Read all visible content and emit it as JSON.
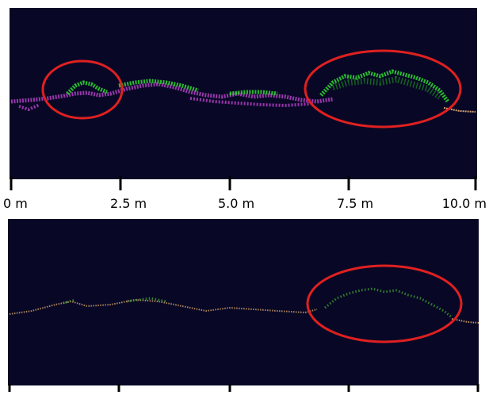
{
  "scale": {
    "labels": [
      "0 m",
      "2.5 m",
      "5.0 m",
      "7.5 m",
      "10.0 m"
    ]
  }
}
